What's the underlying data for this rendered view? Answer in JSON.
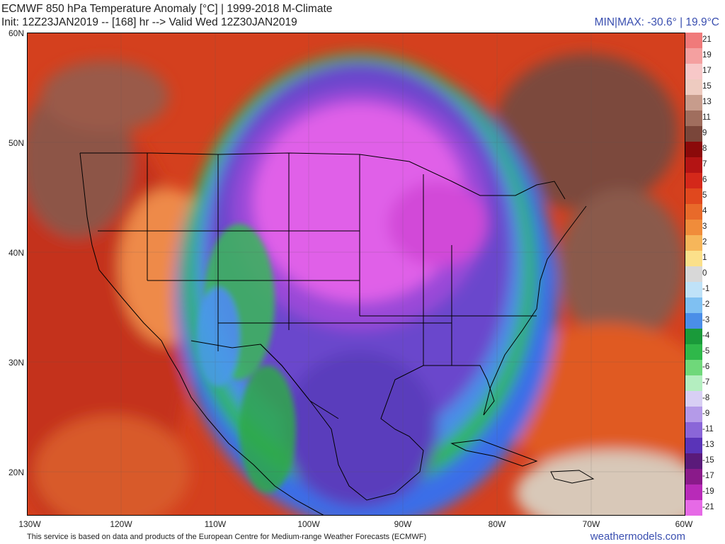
{
  "header": {
    "title": "ECMWF 850 hPa Temperature Anomaly [°C] | 1999-2018 M-Climate",
    "init": "Init: 12Z23JAN2019 -- [168] hr --> Valid Wed 12Z30JAN2019",
    "minmax": "MIN|MAX: -30.6° | 19.9°C"
  },
  "lat_labels": [
    "60N",
    "50N",
    "40N",
    "30N",
    "20N"
  ],
  "lon_labels": [
    "130W",
    "120W",
    "110W",
    "100W",
    "90W",
    "80W",
    "70W",
    "60W"
  ],
  "footer": "This service is based on data and products of the European Centre for Medium-range Weather Forecasts (ECMWF)",
  "brand": "weathermodels.com",
  "colors": {
    "warm_deep": "#c0391b",
    "warm_brown": "#8b5a4a",
    "cold_magenta": "#e060e8",
    "cold_purple": "#6a3fc8",
    "cold_blue": "#3a5ee0",
    "green": "#2fb84a",
    "border": "#000000"
  },
  "scale": {
    "labels": [
      "21",
      "19",
      "17",
      "15",
      "13",
      "11",
      "9",
      "8",
      "7",
      "6",
      "5",
      "4",
      "3",
      "2",
      "1",
      "0",
      "-1",
      "-2",
      "-3",
      "-4",
      "-5",
      "-6",
      "-7",
      "-8",
      "-9",
      "-11",
      "-13",
      "-15",
      "-17",
      "-19",
      "-21"
    ],
    "colors": [
      "#f07a7a",
      "#f4a0a0",
      "#f7c8c8",
      "#eecbc0",
      "#c79c8c",
      "#a06e5e",
      "#7a463a",
      "#8b0a0a",
      "#b41414",
      "#d4281a",
      "#e0481e",
      "#e86a2a",
      "#f08c3a",
      "#f6b65a",
      "#fbe08a",
      "#d8d8d8",
      "#bfe2f8",
      "#7fc0f2",
      "#4a8ee8",
      "#1a9a3a",
      "#2fb84a",
      "#6fd87a",
      "#b4eec0",
      "#d8cff4",
      "#b49ae8",
      "#8a66d8",
      "#5a34b8",
      "#5a1a7a",
      "#8a1a8a",
      "#b82ab8",
      "#e66ae6"
    ]
  }
}
